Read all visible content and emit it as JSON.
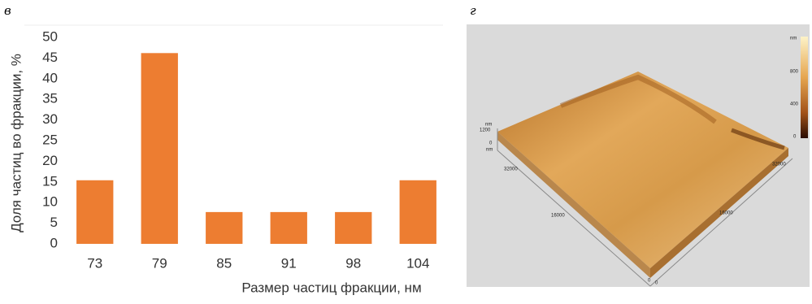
{
  "chart_data": {
    "type": "bar",
    "panel_label": "в",
    "categories": [
      "73",
      "79",
      "85",
      "91",
      "98",
      "104"
    ],
    "values": [
      15.4,
      46.2,
      7.7,
      7.7,
      7.7,
      15.4
    ],
    "color": "#ed7d31",
    "ylim": [
      0,
      50
    ],
    "yticks": [
      0,
      5,
      10,
      15,
      20,
      25,
      30,
      35,
      40,
      45,
      50
    ],
    "grid": false,
    "x_label": "Размер частиц фракции, нм",
    "y_label": "Доля частиц во фракции, %"
  },
  "afm_image": {
    "panel_label": "г",
    "colorbar_unit": "nm",
    "colorbar_ticks": [
      "800",
      "400",
      "0"
    ],
    "z_unit": "nm",
    "z_ticks": [
      "1200",
      "0"
    ],
    "x_unit": "nm",
    "x_ticks": [
      "32000",
      "16000",
      "0"
    ],
    "y_ticks": [
      "32000",
      "16000",
      "0"
    ]
  }
}
